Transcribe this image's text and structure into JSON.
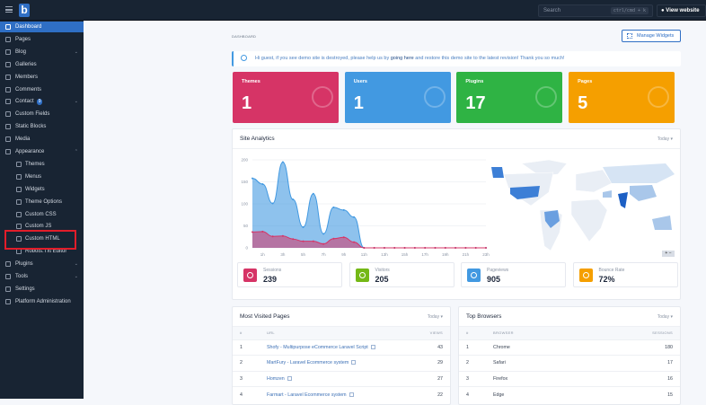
{
  "topbar": {
    "search_placeholder": "Search",
    "search_shortcut": "ctrl/cmd + k",
    "view_website": "View website",
    "logo": "b"
  },
  "sidebar": {
    "items": [
      {
        "label": "Dashboard",
        "active": true
      },
      {
        "label": "Pages"
      },
      {
        "label": "Blog",
        "chevron": "⌄"
      },
      {
        "label": "Galleries"
      },
      {
        "label": "Members"
      },
      {
        "label": "Comments"
      },
      {
        "label": "Contact",
        "badge": "9",
        "chevron": "⌄"
      },
      {
        "label": "Custom Fields"
      },
      {
        "label": "Static Blocks"
      },
      {
        "label": "Media"
      },
      {
        "label": "Appearance",
        "chevron": "⌃"
      },
      {
        "label": "Themes",
        "sub": true
      },
      {
        "label": "Menus",
        "sub": true
      },
      {
        "label": "Widgets",
        "sub": true
      },
      {
        "label": "Theme Options",
        "sub": true
      },
      {
        "label": "Custom CSS",
        "sub": true
      },
      {
        "label": "Custom JS",
        "sub": true
      },
      {
        "label": "Custom HTML",
        "sub": true,
        "highlighted": true
      },
      {
        "label": "Robots.Txt Editor",
        "sub": true
      },
      {
        "label": "Plugins",
        "chevron": "⌄"
      },
      {
        "label": "Tools",
        "chevron": "⌄"
      },
      {
        "label": "Settings"
      },
      {
        "label": "Platform Administration"
      }
    ]
  },
  "header": {
    "breadcrumb": "DASHBOARD",
    "manage_widgets": "Manage Widgets"
  },
  "alert": {
    "before": "Hi guest, if you see demo site is destroyed, please help us by ",
    "link": "going here",
    "after": " and restore this demo site to the latest revision! Thank you so much!"
  },
  "cards": [
    {
      "title": "Themes",
      "value": "1",
      "color": "#d63466",
      "icon": "palette-icon"
    },
    {
      "title": "Users",
      "value": "1",
      "color": "#4299e1",
      "icon": "users-icon"
    },
    {
      "title": "Plugins",
      "value": "17",
      "color": "#2fb344",
      "icon": "plug-icon"
    },
    {
      "title": "Pages",
      "value": "5",
      "color": "#f59f00",
      "icon": "copy-icon"
    }
  ],
  "analytics": {
    "title": "Site Analytics",
    "period": "Today",
    "stats": [
      {
        "label": "Sessions",
        "value": "239",
        "color": "#d63466",
        "icon": "eye-icon"
      },
      {
        "label": "Visitors",
        "value": "205",
        "color": "#74b816",
        "icon": "users-icon"
      },
      {
        "label": "Pageviews",
        "value": "905",
        "color": "#4299e1",
        "icon": "traffic-cone-icon"
      },
      {
        "label": "Bounce Rate",
        "value": "72%",
        "color": "#f59f00",
        "icon": "bolt-icon"
      }
    ],
    "map_zoom": {
      "in": "+",
      "out": "−"
    }
  },
  "chart_data": {
    "type": "area",
    "ylim": [
      0,
      200
    ],
    "yticks": [
      0,
      50,
      100,
      150,
      200
    ],
    "x": [
      "0h",
      "1h",
      "2h",
      "3h",
      "4h",
      "5h",
      "6h",
      "7h",
      "8h",
      "9h",
      "10h",
      "11h",
      "12h",
      "13h",
      "14h",
      "15h",
      "16h",
      "17h",
      "18h",
      "19h",
      "20h",
      "21h",
      "22h",
      "23h"
    ],
    "xtick_labels": [
      "1h",
      "3h",
      "5h",
      "7h",
      "9h",
      "11h",
      "13h",
      "15h",
      "17h",
      "19h",
      "21h",
      "23h"
    ],
    "series": [
      {
        "color": "#4299e1",
        "values": [
          158,
          145,
          101,
          195,
          110,
          47,
          123,
          32,
          92,
          86,
          70,
          0,
          0,
          0,
          0,
          0,
          0,
          0,
          0,
          0,
          0,
          0,
          0,
          0
        ]
      },
      {
        "color": "#d63466",
        "values": [
          36,
          37,
          26,
          27,
          20,
          15,
          15,
          9,
          21,
          24,
          13,
          0,
          0,
          0,
          0,
          0,
          0,
          0,
          0,
          0,
          0,
          0,
          0,
          0
        ]
      }
    ],
    "grid": true
  },
  "most_visited": {
    "title": "Most Visited Pages",
    "period": "Today",
    "columns": [
      "#",
      "URL",
      "VIEWS"
    ],
    "rows": [
      [
        "1",
        "Shofy - Multipurpose eCommerce Laravel Script",
        "43"
      ],
      [
        "2",
        "MartFury - Laravel Ecommerce system",
        "29"
      ],
      [
        "3",
        "Homzen",
        "27"
      ],
      [
        "4",
        "Farmart - Laravel Ecommerce system",
        "22"
      ]
    ]
  },
  "top_browsers": {
    "title": "Top Browsers",
    "period": "Today",
    "columns": [
      "#",
      "BROWSER",
      "SESSIONS"
    ],
    "rows": [
      [
        "1",
        "Chrome",
        "180"
      ],
      [
        "2",
        "Safari",
        "17"
      ],
      [
        "3",
        "Firefox",
        "16"
      ],
      [
        "4",
        "Edge",
        "15"
      ]
    ]
  }
}
